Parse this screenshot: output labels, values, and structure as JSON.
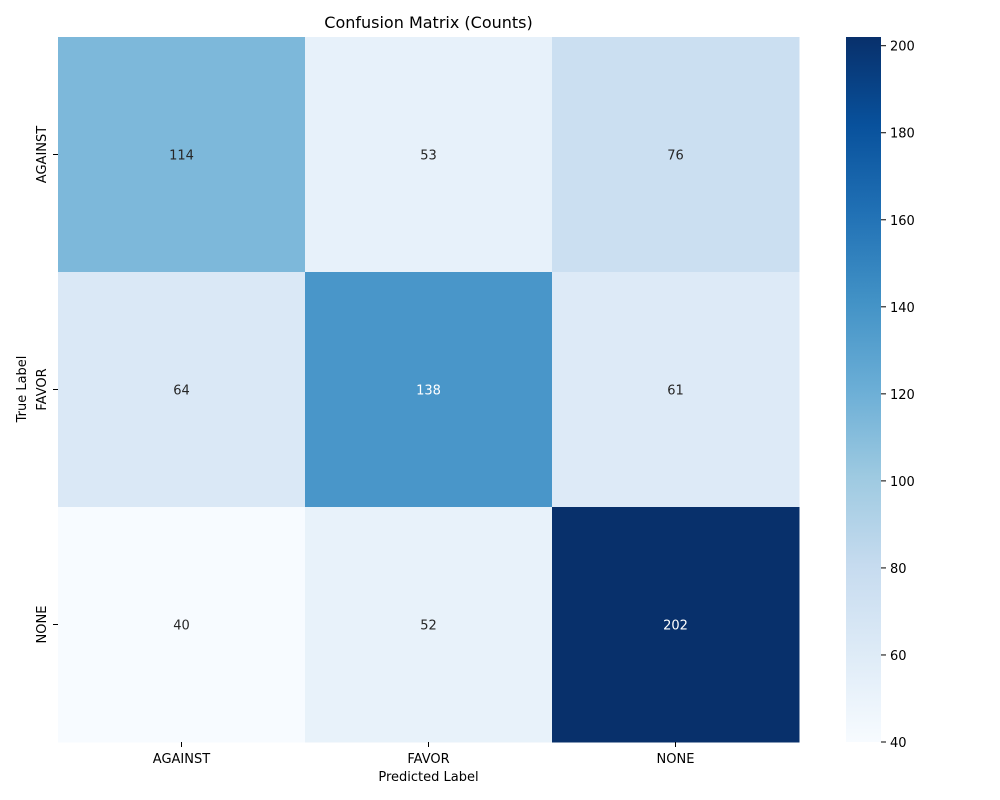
{
  "chart_data": {
    "type": "heatmap",
    "title": "Confusion Matrix (Counts)",
    "xlabel": "Predicted Label",
    "ylabel": "True Label",
    "x_categories": [
      "AGAINST",
      "FAVOR",
      "NONE"
    ],
    "y_categories": [
      "AGAINST",
      "FAVOR",
      "NONE"
    ],
    "values": [
      [
        114,
        53,
        76
      ],
      [
        64,
        138,
        61
      ],
      [
        40,
        52,
        202
      ]
    ],
    "colormap": "Blues",
    "colorbar": {
      "range": [
        40,
        202
      ],
      "ticks": [
        40,
        60,
        80,
        100,
        120,
        140,
        160,
        180,
        200
      ]
    },
    "grid": false
  }
}
